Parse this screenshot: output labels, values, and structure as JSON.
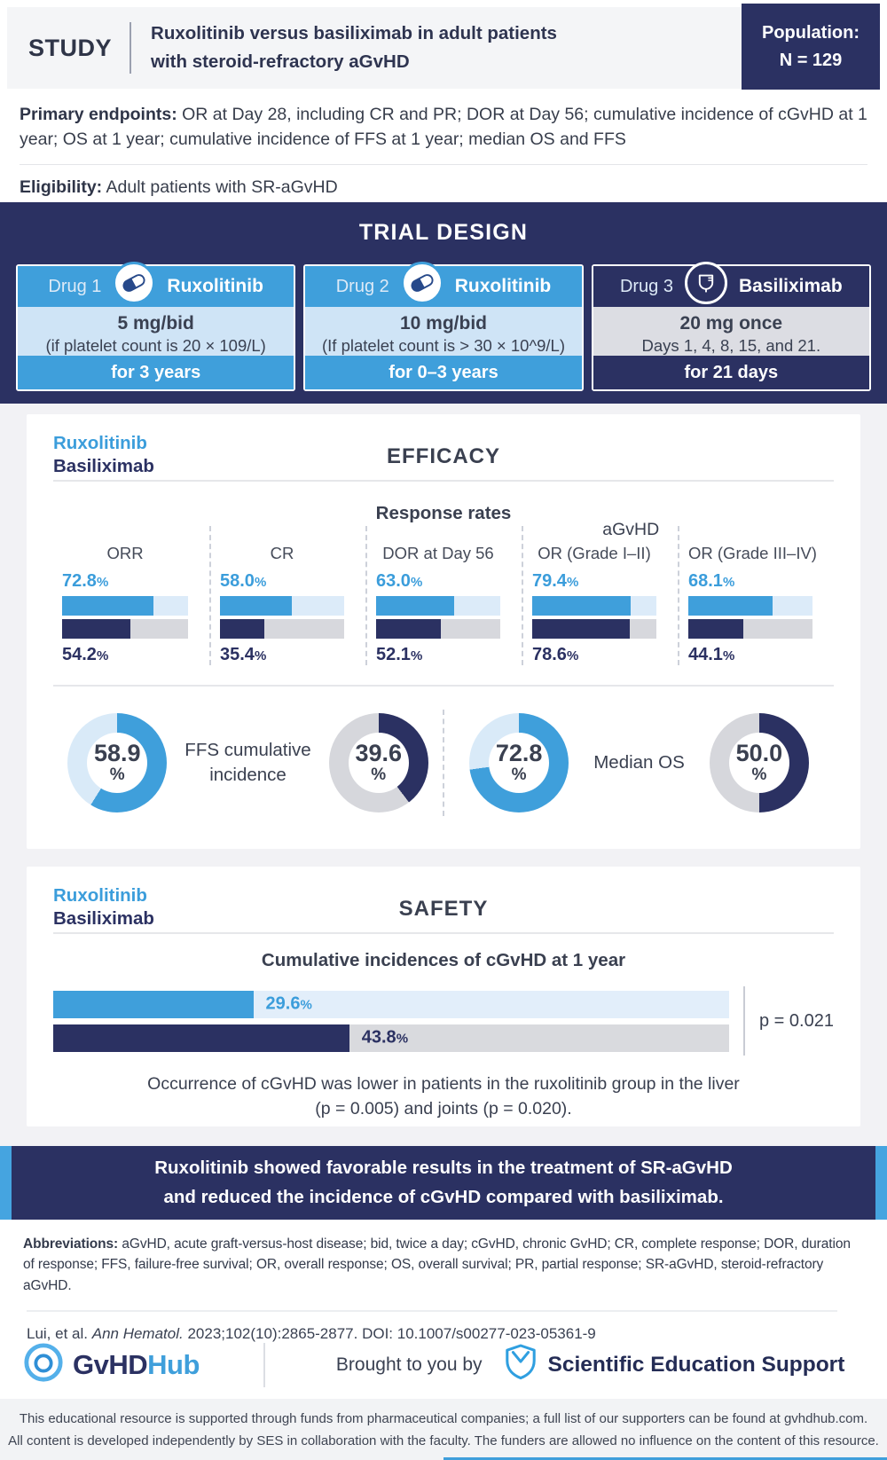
{
  "colors": {
    "navy": "#2b3162",
    "blue": "#3f9fdb",
    "blue_text": "#3b9ddb",
    "light_blue_track": "#d9eaf8",
    "gray_track": "#d6d7dc",
    "dark_text": "#3a4152"
  },
  "shared": {
    "pct": "%"
  },
  "header": {
    "study_label": "STUDY",
    "title_line1": "Ruxolitinib versus basiliximab in adult patients",
    "title_line2": "with steroid-refractory aGvHD",
    "population_label": "Population:",
    "population_value": "N = 129"
  },
  "endpoints": {
    "primary_label": "Primary endpoints:",
    "primary_text": "OR at Day 28, including CR and PR; DOR at Day 56; cumulative incidence of cGvHD at 1 year; OS at 1 year; cumulative incidence of FFS at 1 year; median OS and FFS",
    "eligibility_label": "Eligibility:",
    "eligibility_text": "Adult patients with SR-aGvHD"
  },
  "trial_design": {
    "title": "TRIAL DESIGN",
    "drugs": [
      {
        "label": "Drug 1",
        "name": "Ruxolitinib",
        "dose": "5 mg/bid",
        "note": "(if platelet count is 20 × 109/L)",
        "duration": "for 3 years"
      },
      {
        "label": "Drug 2",
        "name": "Ruxolitinib",
        "dose": "10 mg/bid",
        "note": "(If platelet count is > 30 × 10^9/L)",
        "duration": "for 0–3 years"
      },
      {
        "label": "Drug 3",
        "name": "Basiliximab",
        "dose": "20 mg once",
        "note": "Days 1, 4, 8, 15, and 21.",
        "duration": "for 21 days"
      }
    ]
  },
  "efficacy": {
    "legend_rux": "Ruxolitinib",
    "legend_bas": "Basiliximab",
    "title": "EFFICACY",
    "subtitle": "Response rates",
    "group_label": "aGvHD",
    "columns": [
      {
        "label": "ORR",
        "rux": "72.8",
        "bas": "54.2",
        "rux_val": 72.8,
        "bas_val": 54.2
      },
      {
        "label": "CR",
        "rux": "58.0",
        "bas": "35.4",
        "rux_val": 58.0,
        "bas_val": 35.4
      },
      {
        "label": "DOR at Day 56",
        "rux": "63.0",
        "bas": "52.1",
        "rux_val": 63.0,
        "bas_val": 52.1
      },
      {
        "label": "OR (Grade I–II)",
        "rux": "79.4",
        "bas": "78.6",
        "rux_val": 79.4,
        "bas_val": 78.6
      },
      {
        "label": "OR (Grade III–IV)",
        "rux": "68.1",
        "bas": "44.1",
        "rux_val": 68.1,
        "bas_val": 44.1
      }
    ],
    "donut_left_label": "FFS cumulative incidence",
    "donut_right_label": "Median OS",
    "donuts": [
      {
        "value": "58.9",
        "pct": 58.9,
        "theme": "blue"
      },
      {
        "value": "39.6",
        "pct": 39.6,
        "theme": "navy"
      },
      {
        "value": "72.8",
        "pct": 72.8,
        "theme": "blue"
      },
      {
        "value": "50.0",
        "pct": 50.0,
        "theme": "navy"
      }
    ]
  },
  "safety": {
    "legend_rux": "Ruxolitinib",
    "legend_bas": "Basiliximab",
    "title": "SAFETY",
    "chart_title": "Cumulative incidences of cGvHD at 1 year",
    "bars": [
      {
        "name": "Ruxolitinib",
        "value": "29.6",
        "pct": 29.6
      },
      {
        "name": "Basiliximab",
        "value": "43.8",
        "pct": 43.8
      }
    ],
    "p_value": "p = 0.021",
    "note_line1": "Occurrence of cGvHD was lower in patients in the ruxolitinib group in the liver",
    "note_line2": "(p = 0.005) and joints (p = 0.020)."
  },
  "conclusion": {
    "line1": "Ruxolitinib showed favorable results in the treatment of SR-aGvHD",
    "line2": "and reduced the incidence of cGvHD compared with basiliximab."
  },
  "abbreviations": {
    "label": "Abbreviations:",
    "text": "aGvHD, acute graft-versus-host disease; bid, twice a day; cGvHD, chronic GvHD; CR, complete response; DOR, duration of response; FFS, failure-free survival; OR, overall response; OS, overall survival; PR, partial response; SR-aGvHD, steroid-refractory aGvHD."
  },
  "citation": {
    "authors": "Lui, et al.",
    "journal": "Ann Hematol.",
    "rest": "2023;102(10):2865-2877. DOI: 10.1007/s00277-023-05361-9"
  },
  "footer": {
    "logo_part1": "GvHD",
    "logo_part2": "Hub",
    "brought": "Brought to you by",
    "ses": "Scientific Education Support"
  },
  "disclaimer": {
    "line1": "This educational resource is supported through funds from pharmaceutical companies; a full list of our supporters can be found at gvhdhub.com.",
    "line2": "All content is developed independently by SES in collaboration with the faculty. The funders are allowed no influence on the content of this resource."
  },
  "chart_data": [
    {
      "type": "bar",
      "title": "Response rates",
      "categories": [
        "ORR",
        "CR",
        "DOR at Day 56",
        "OR (Grade I–II)",
        "OR (Grade III–IV)"
      ],
      "series": [
        {
          "name": "Ruxolitinib",
          "values": [
            72.8,
            58.0,
            63.0,
            79.4,
            68.1
          ]
        },
        {
          "name": "Basiliximab",
          "values": [
            54.2,
            35.4,
            52.1,
            78.6,
            44.1
          ]
        }
      ],
      "unit": "%",
      "ylim": [
        0,
        100
      ],
      "annotations": [
        "aGvHD group label over OR (Grade I–II) and OR (Grade III–IV)"
      ]
    },
    {
      "type": "pie",
      "title": "FFS cumulative incidence",
      "series": [
        {
          "name": "Ruxolitinib",
          "value": 58.9
        },
        {
          "name": "Basiliximab",
          "value": 39.6
        }
      ],
      "unit": "%"
    },
    {
      "type": "pie",
      "title": "Median OS",
      "series": [
        {
          "name": "Ruxolitinib",
          "value": 72.8
        },
        {
          "name": "Basiliximab",
          "value": 50.0
        }
      ],
      "unit": "%"
    },
    {
      "type": "bar",
      "title": "Cumulative incidences of cGvHD at 1 year",
      "categories": [
        "Ruxolitinib",
        "Basiliximab"
      ],
      "values": [
        29.6,
        43.8
      ],
      "unit": "%",
      "ylim": [
        0,
        100
      ],
      "annotations": [
        "p = 0.021"
      ]
    }
  ]
}
